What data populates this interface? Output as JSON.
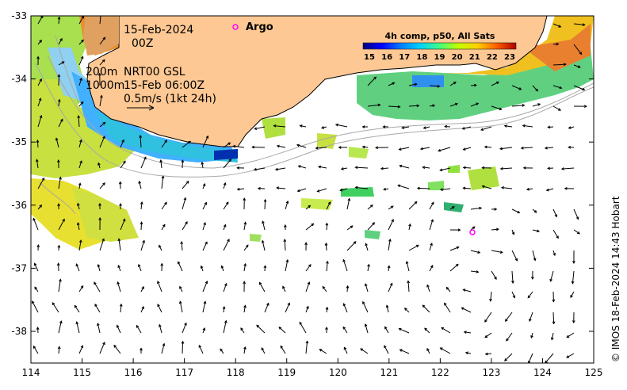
{
  "map": {
    "date_label": "15-Feb-2024",
    "hour_label": "00Z",
    "depth_label_1": "200m",
    "depth_label_2": "1000m",
    "product_label": "NRT00 GSL",
    "valid_time_label": "15-Feb 06:00Z",
    "velocity_scale_label": "0.5m/s (1kt 24h)",
    "argo_label": "Argo",
    "credit": "© IMOS 18-Feb-2024 14:43 Hobart",
    "colorbar": {
      "title": "4h comp, p50, All Sats",
      "ticks": [
        "15",
        "16",
        "17",
        "18",
        "19",
        "20",
        "21",
        "22",
        "23"
      ],
      "colors": [
        "#00007f",
        "#0000ff",
        "#0080ff",
        "#00d0ff",
        "#40ff80",
        "#c0ff00",
        "#ffd000",
        "#ff6000",
        "#b00000"
      ]
    },
    "x_ticks": [
      "114",
      "115",
      "116",
      "117",
      "118",
      "119",
      "120",
      "121",
      "122",
      "123",
      "124",
      "125"
    ],
    "y_ticks": [
      "-33",
      "-34",
      "-35",
      "-36",
      "-37",
      "-38"
    ],
    "land_color": "#fdc893",
    "argo_color": "#ff00ff"
  }
}
